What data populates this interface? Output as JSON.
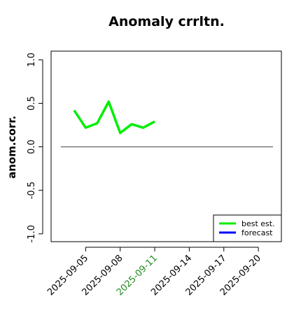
{
  "chart_data": {
    "type": "line",
    "title": "Anomaly crrltn.",
    "ylabel": "anom.corr.",
    "x": [
      "2025-09-04",
      "2025-09-05",
      "2025-09-06",
      "2025-09-07",
      "2025-09-08",
      "2025-09-09",
      "2025-09-10",
      "2025-09-11"
    ],
    "series": [
      {
        "name": "best est.",
        "color": "#00ee00",
        "values": [
          0.42,
          0.22,
          0.27,
          0.52,
          0.16,
          0.26,
          0.22,
          0.29
        ]
      },
      {
        "name": "forecast",
        "color": "#0000ff",
        "values": [
          null,
          null,
          null,
          null,
          null,
          null,
          null,
          null
        ]
      }
    ],
    "xlim": [
      "2025-09-02",
      "2025-09-22"
    ],
    "xticks": [
      "2025-09-05",
      "2025-09-08",
      "2025-09-11",
      "2025-09-14",
      "2025-09-17",
      "2025-09-20"
    ],
    "highlight_xtick": "2025-09-11",
    "highlight_color": "#228b22",
    "ylim": [
      -1.09,
      1.1
    ],
    "yticks": [
      {
        "value": -1,
        "label": "-1.0"
      },
      {
        "value": -0.5,
        "label": "-0.5"
      },
      {
        "value": 0,
        "label": "0.0"
      },
      {
        "value": 0.5,
        "label": "0.5"
      },
      {
        "value": 1,
        "label": "1.0"
      }
    ],
    "hline": 0,
    "hline_color": "#666666",
    "legend": "bottomright"
  }
}
